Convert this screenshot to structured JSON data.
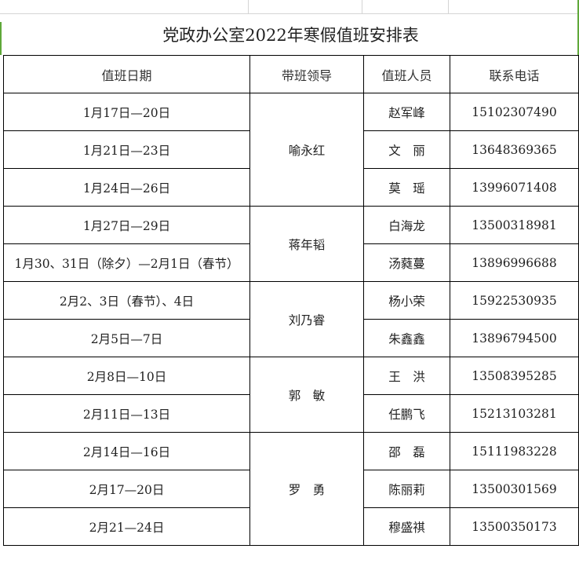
{
  "title": "党政办公室2022年寒假值班安排表",
  "headers": [
    "值班日期",
    "带班领导",
    "值班人员",
    "联系电话"
  ],
  "rows": [
    {
      "date": "1月17日—20日",
      "person": "赵军峰",
      "phone": "15102307490"
    },
    {
      "date": "1月21日—23日",
      "person": "文　丽",
      "phone": "13648369365"
    },
    {
      "date": "1月24日—26日",
      "person": "莫　瑶",
      "phone": "13996071408"
    },
    {
      "date": "1月27日—29日",
      "person": "白海龙",
      "phone": "13500318981"
    },
    {
      "date": "1月30、31日（除夕）—2月1日（春节）",
      "person": "汤蕤蔓",
      "phone": "13896996688"
    },
    {
      "date": "2月2、3日（春节）、4日",
      "person": "杨小荣",
      "phone": "15922530935"
    },
    {
      "date": "2月5日—7日",
      "person": "朱鑫鑫",
      "phone": "13896794500"
    },
    {
      "date": "2月8日—10日",
      "person": "王　洪",
      "phone": "13508395285"
    },
    {
      "date": "2月11日—13日",
      "person": "任鹏飞",
      "phone": "15213103281"
    },
    {
      "date": "2月14日—16日",
      "person": "邵　磊",
      "phone": "15111983228"
    },
    {
      "date": "2月17—20日",
      "person": "陈丽莉",
      "phone": "13500301569"
    },
    {
      "date": "2月21—24日",
      "person": "穆盛祺",
      "phone": "13500350173"
    }
  ],
  "leaders": [
    {
      "name": "喻永红",
      "span": 3
    },
    {
      "name": "蒋年韬",
      "span": 2
    },
    {
      "name": "刘乃睿",
      "span": 2
    },
    {
      "name": "郭　敏",
      "span": 2
    },
    {
      "name": "罗　勇",
      "span": 3
    }
  ],
  "colors": {
    "grid_border": "#000000",
    "selection_border": "#5fa83a"
  }
}
